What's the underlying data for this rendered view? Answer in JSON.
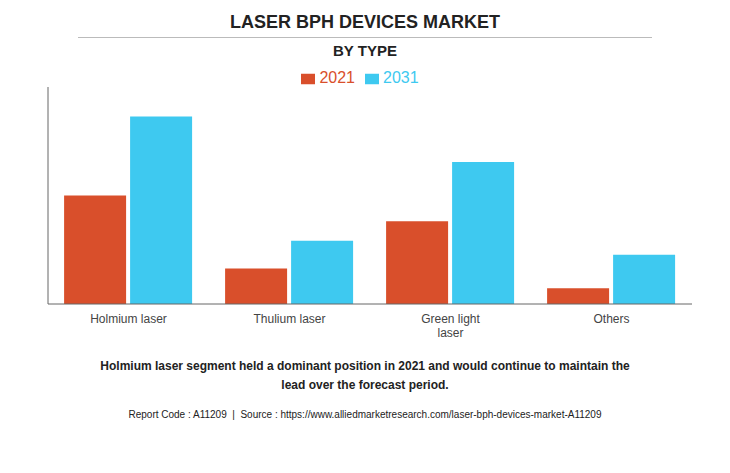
{
  "chart_data": {
    "type": "bar",
    "title": "LASER BPH DEVICES MARKET",
    "subtitle": "BY TYPE",
    "categories": [
      "Holmium laser",
      "Thulium laser",
      "Green light\nlaser",
      "Others"
    ],
    "series": [
      {
        "name": "2021",
        "color": "#d94f2b",
        "values": [
          55,
          18,
          42,
          8
        ]
      },
      {
        "name": "2031",
        "color": "#3ec9f0",
        "values": [
          95,
          32,
          72,
          25
        ]
      }
    ],
    "ylim": [
      0,
      110
    ],
    "grid": false,
    "legend": "top",
    "tick_labels": "x",
    "annotations": [
      "Holmium laser segment held a dominant position in 2021 and would continue to maintain the\nlead over the forecast period.",
      "Report Code : A11209  |  Source : https://www.alliedmarketresearch.com/laser-bph-devices-market-A11209"
    ]
  }
}
